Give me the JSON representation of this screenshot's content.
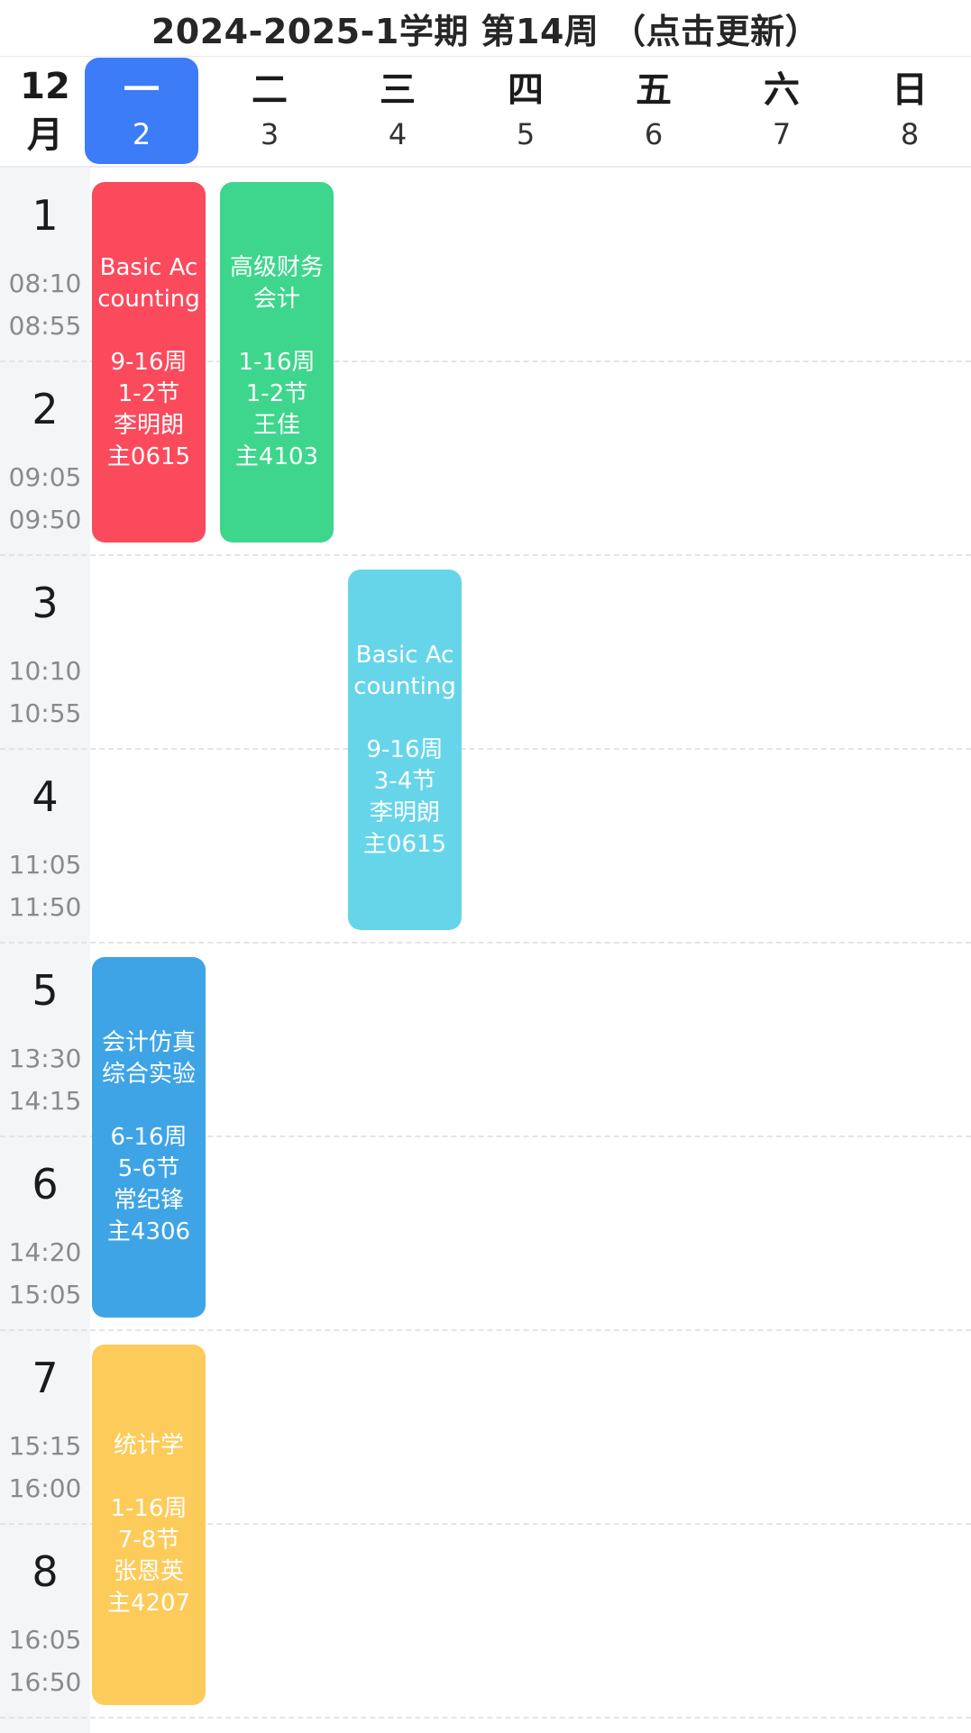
{
  "header": {
    "title": "2024-2025-1学期 第14周 （点击更新）",
    "month": "12",
    "month_unit": "月"
  },
  "days": [
    {
      "name": "一",
      "date": "2",
      "selected": true
    },
    {
      "name": "二",
      "date": "3",
      "selected": false
    },
    {
      "name": "三",
      "date": "4",
      "selected": false
    },
    {
      "name": "四",
      "date": "5",
      "selected": false
    },
    {
      "name": "五",
      "date": "6",
      "selected": false
    },
    {
      "name": "六",
      "date": "7",
      "selected": false
    },
    {
      "name": "日",
      "date": "8",
      "selected": false
    }
  ],
  "periods": [
    {
      "num": "1",
      "start": "08:10",
      "end": "08:55"
    },
    {
      "num": "2",
      "start": "09:05",
      "end": "09:50"
    },
    {
      "num": "3",
      "start": "10:10",
      "end": "10:55"
    },
    {
      "num": "4",
      "start": "11:05",
      "end": "11:50"
    },
    {
      "num": "5",
      "start": "13:30",
      "end": "14:15"
    },
    {
      "num": "6",
      "start": "14:20",
      "end": "15:05"
    },
    {
      "num": "7",
      "start": "15:15",
      "end": "16:00"
    },
    {
      "num": "8",
      "start": "16:05",
      "end": "16:50"
    }
  ],
  "courses": [
    {
      "name": "Basic Accounting",
      "weeks": "9-16周",
      "sessions": "1-2节",
      "teacher": "李明朗",
      "room": "主0615",
      "day": 1,
      "period_start": 1,
      "period_count": 2,
      "color": "#fb4a5c"
    },
    {
      "name": "高级财务会计",
      "weeks": "1-16周",
      "sessions": "1-2节",
      "teacher": "王佳",
      "room": "主4103",
      "day": 2,
      "period_start": 1,
      "period_count": 2,
      "color": "#3ed68c"
    },
    {
      "name": "Basic Accounting",
      "weeks": "9-16周",
      "sessions": "3-4节",
      "teacher": "李明朗",
      "room": "主0615",
      "day": 3,
      "period_start": 3,
      "period_count": 2,
      "color": "#66d5ea"
    },
    {
      "name": "会计仿真综合实验",
      "weeks": "6-16周",
      "sessions": "5-6节",
      "teacher": "常纪锋",
      "room": "主4306",
      "day": 1,
      "period_start": 5,
      "period_count": 2,
      "color": "#3ea4e6"
    },
    {
      "name": "统计学",
      "weeks": "1-16周",
      "sessions": "7-8节",
      "teacher": "张恩英",
      "room": "主4207",
      "day": 1,
      "period_start": 7,
      "period_count": 2,
      "color": "#fdcb5a"
    }
  ]
}
